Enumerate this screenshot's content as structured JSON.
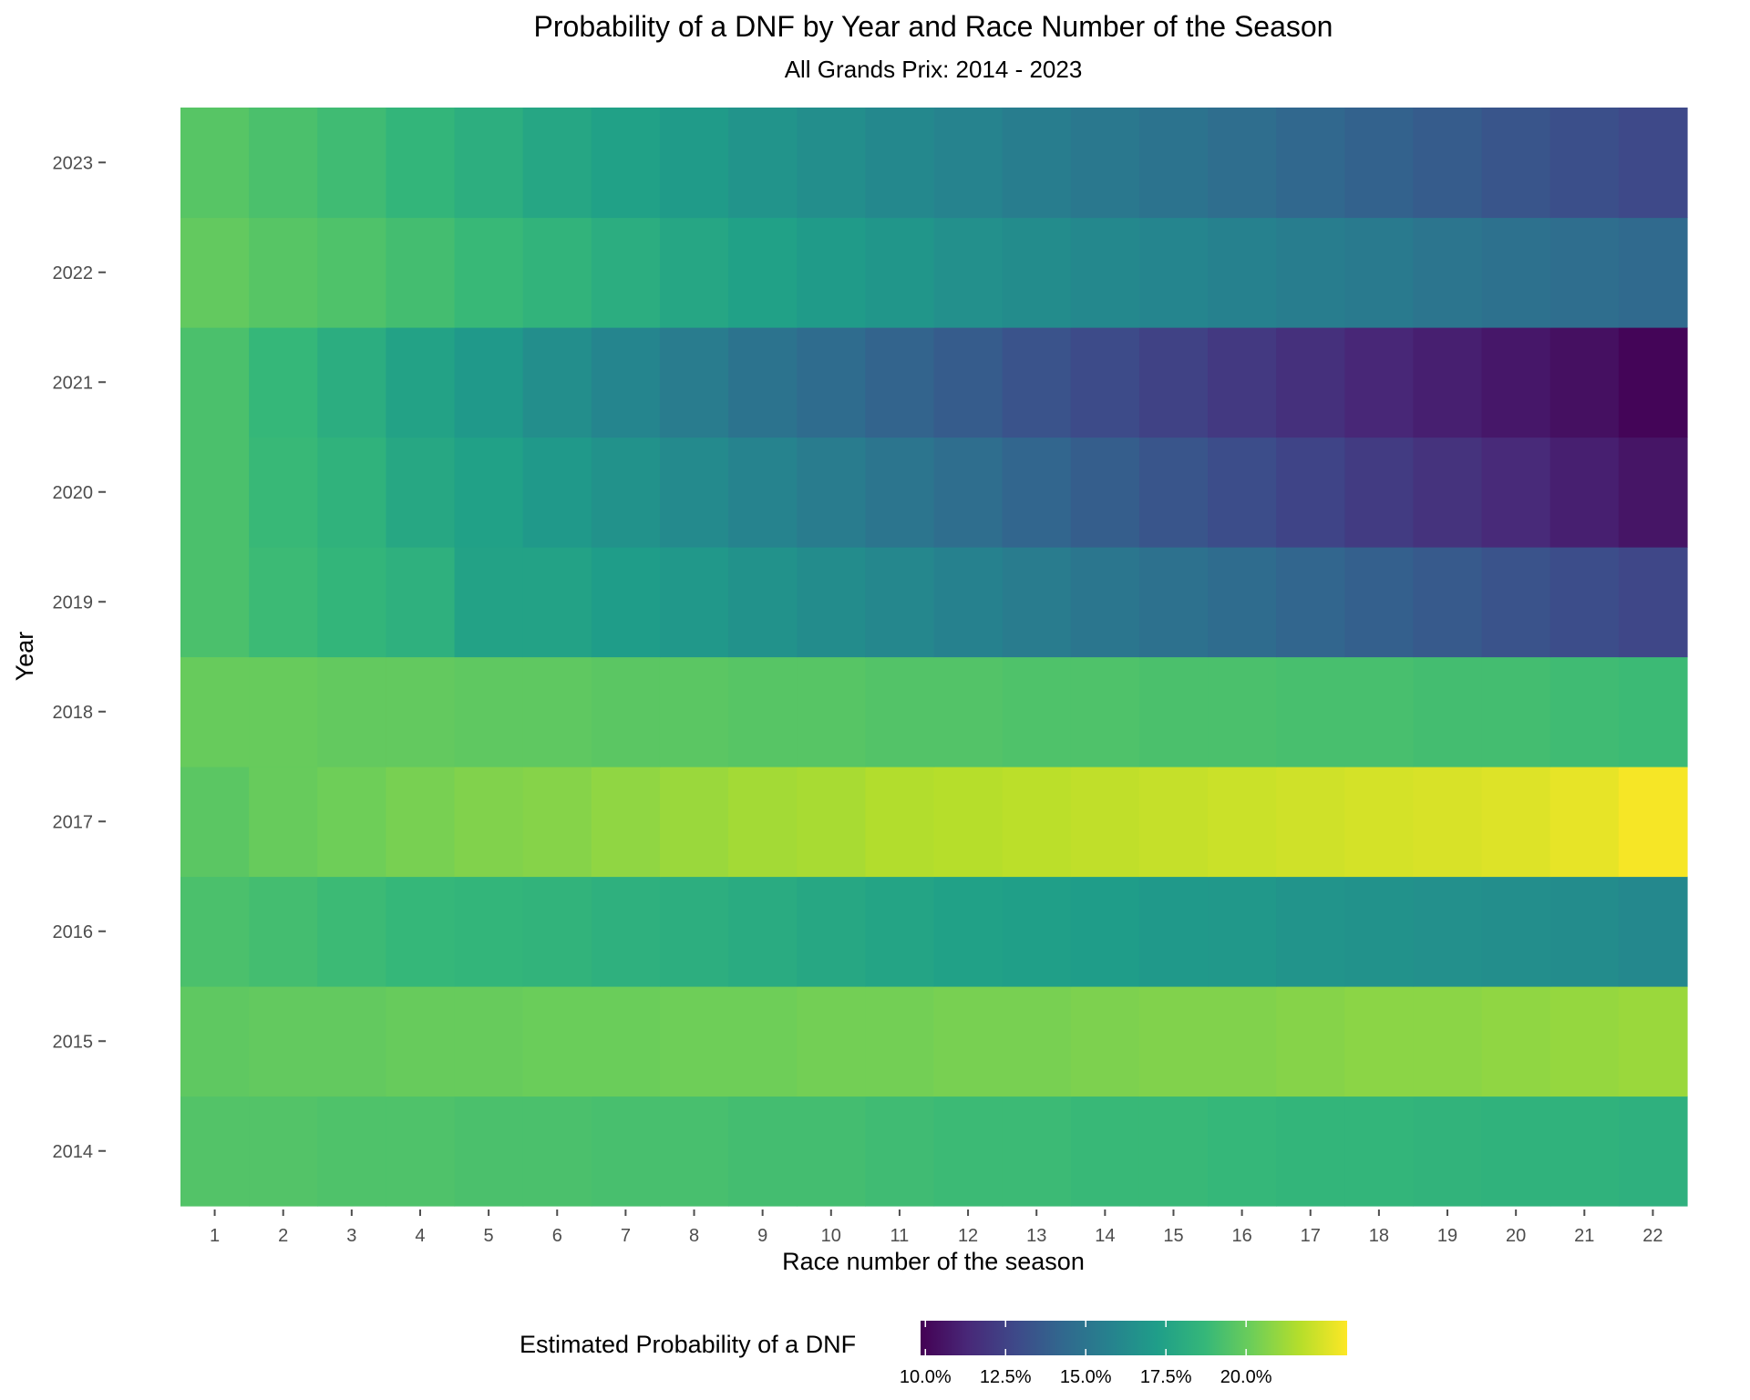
{
  "chart_data": {
    "type": "heatmap",
    "title": "Probability of a DNF by Year and Race Number of the Season",
    "subtitle": "All Grands Prix: 2014 - 2023",
    "xlabel": "Race number of the season",
    "ylabel": "Year",
    "x": [
      1,
      2,
      3,
      4,
      5,
      6,
      7,
      8,
      9,
      10,
      11,
      12,
      13,
      14,
      15,
      16,
      17,
      18,
      19,
      20,
      21,
      22
    ],
    "y": [
      2014,
      2015,
      2016,
      2017,
      2018,
      2019,
      2020,
      2021,
      2022,
      2023
    ],
    "values": [
      [
        0.195,
        0.195,
        0.194,
        0.194,
        0.193,
        0.193,
        0.192,
        0.192,
        0.191,
        0.191,
        0.19,
        0.189,
        0.189,
        0.188,
        0.188,
        0.187,
        0.186,
        0.186,
        0.185,
        0.184,
        0.184,
        0.183
      ],
      [
        0.198,
        0.199,
        0.199,
        0.2,
        0.2,
        0.201,
        0.201,
        0.202,
        0.202,
        0.203,
        0.203,
        0.204,
        0.204,
        0.205,
        0.206,
        0.206,
        0.207,
        0.208,
        0.208,
        0.209,
        0.21,
        0.211
      ],
      [
        0.193,
        0.191,
        0.189,
        0.187,
        0.186,
        0.185,
        0.183,
        0.182,
        0.18,
        0.178,
        0.176,
        0.174,
        0.173,
        0.172,
        0.17,
        0.169,
        0.167,
        0.166,
        0.165,
        0.164,
        0.163,
        0.161
      ],
      [
        0.197,
        0.2,
        0.202,
        0.204,
        0.206,
        0.207,
        0.209,
        0.211,
        0.213,
        0.214,
        0.216,
        0.217,
        0.218,
        0.219,
        0.22,
        0.221,
        0.222,
        0.223,
        0.224,
        0.225,
        0.227,
        0.23
      ],
      [
        0.2,
        0.2,
        0.199,
        0.199,
        0.198,
        0.198,
        0.197,
        0.197,
        0.196,
        0.196,
        0.195,
        0.195,
        0.194,
        0.194,
        0.193,
        0.193,
        0.192,
        0.192,
        0.191,
        0.191,
        0.19,
        0.189
      ],
      [
        0.193,
        0.189,
        0.186,
        0.183,
        0.175,
        0.175,
        0.172,
        0.169,
        0.166,
        0.163,
        0.16,
        0.157,
        0.154,
        0.151,
        0.148,
        0.145,
        0.142,
        0.139,
        0.136,
        0.133,
        0.13,
        0.127
      ],
      [
        0.193,
        0.188,
        0.184,
        0.178,
        0.174,
        0.17,
        0.166,
        0.162,
        0.158,
        0.154,
        0.15,
        0.146,
        0.142,
        0.138,
        0.134,
        0.13,
        0.126,
        0.122,
        0.118,
        0.114,
        0.11,
        0.106
      ],
      [
        0.193,
        0.187,
        0.181,
        0.175,
        0.17,
        0.164,
        0.159,
        0.154,
        0.149,
        0.145,
        0.141,
        0.137,
        0.133,
        0.129,
        0.125,
        0.121,
        0.117,
        0.113,
        0.11,
        0.107,
        0.104,
        0.1
      ],
      [
        0.199,
        0.196,
        0.194,
        0.191,
        0.188,
        0.185,
        0.181,
        0.177,
        0.174,
        0.171,
        0.168,
        0.165,
        0.163,
        0.161,
        0.159,
        0.157,
        0.155,
        0.153,
        0.15,
        0.148,
        0.146,
        0.144
      ],
      [
        0.196,
        0.193,
        0.19,
        0.186,
        0.182,
        0.177,
        0.174,
        0.171,
        0.167,
        0.164,
        0.161,
        0.158,
        0.155,
        0.152,
        0.149,
        0.146,
        0.143,
        0.14,
        0.137,
        0.134,
        0.131,
        0.128
      ]
    ],
    "colorbar": {
      "title": "Estimated Probability of a DNF",
      "range": [
        0.0985,
        0.2315
      ],
      "ticks": [
        0.1,
        0.125,
        0.15,
        0.175,
        0.2
      ],
      "tick_labels": [
        "10.0%",
        "12.5%",
        "15.0%",
        "17.5%",
        "20.0%"
      ],
      "placement": "bottom"
    },
    "colors": {
      "palette": [
        "#440154",
        "#482878",
        "#3e4989",
        "#31688e",
        "#26828e",
        "#1f9e89",
        "#35b779",
        "#6ece58",
        "#b5de2b",
        "#fde725"
      ]
    }
  }
}
